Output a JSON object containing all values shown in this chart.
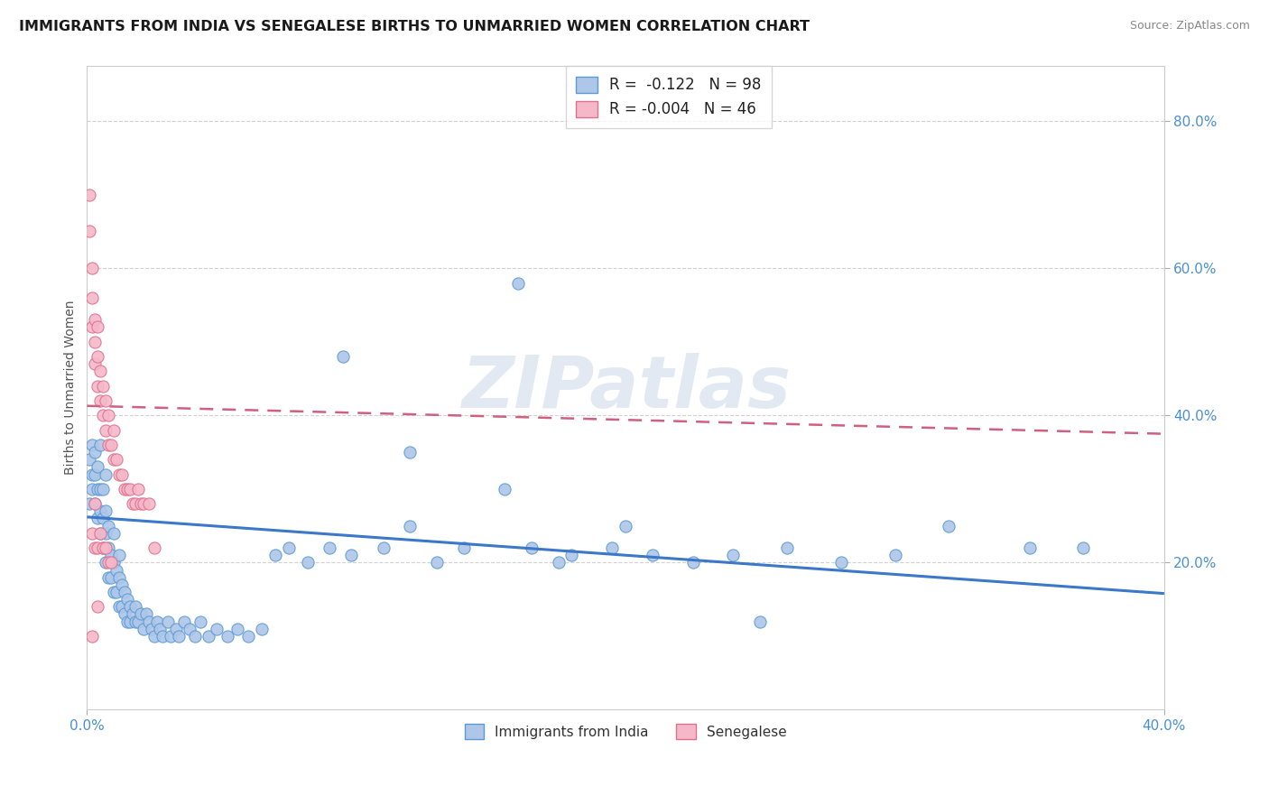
{
  "title": "IMMIGRANTS FROM INDIA VS SENEGALESE BIRTHS TO UNMARRIED WOMEN CORRELATION CHART",
  "source": "Source: ZipAtlas.com",
  "ylabel": "Births to Unmarried Women",
  "xlim": [
    0.0,
    0.4
  ],
  "ylim": [
    0.0,
    0.875
  ],
  "xticks": [
    0.0,
    0.4
  ],
  "xticklabels": [
    "0.0%",
    "40.0%"
  ],
  "yticks": [
    0.2,
    0.4,
    0.6,
    0.8
  ],
  "yticklabels": [
    "20.0%",
    "40.0%",
    "60.0%",
    "80.0%"
  ],
  "r_india": -0.122,
  "n_india": 98,
  "r_senegal": -0.004,
  "n_senegal": 46,
  "blue_scatter_color": "#aec6e8",
  "blue_edge_color": "#5b9bd5",
  "pink_scatter_color": "#f4b8c8",
  "pink_edge_color": "#e07090",
  "blue_line_color": "#3b78c9",
  "pink_line_color": "#d06080",
  "legend_label_india": "Immigrants from India",
  "legend_label_senegal": "Senegalese",
  "watermark": "ZIPatlas",
  "india_trend_y0": 0.262,
  "india_trend_y1": 0.158,
  "senegal_trend_y0": 0.413,
  "senegal_trend_y1": 0.375,
  "india_x": [
    0.001,
    0.001,
    0.002,
    0.002,
    0.002,
    0.003,
    0.003,
    0.003,
    0.004,
    0.004,
    0.004,
    0.005,
    0.005,
    0.005,
    0.005,
    0.006,
    0.006,
    0.006,
    0.007,
    0.007,
    0.007,
    0.007,
    0.008,
    0.008,
    0.008,
    0.009,
    0.009,
    0.01,
    0.01,
    0.01,
    0.011,
    0.011,
    0.012,
    0.012,
    0.012,
    0.013,
    0.013,
    0.014,
    0.014,
    0.015,
    0.015,
    0.016,
    0.016,
    0.017,
    0.018,
    0.018,
    0.019,
    0.02,
    0.021,
    0.022,
    0.023,
    0.024,
    0.025,
    0.026,
    0.027,
    0.028,
    0.03,
    0.031,
    0.033,
    0.034,
    0.036,
    0.038,
    0.04,
    0.042,
    0.045,
    0.048,
    0.052,
    0.056,
    0.06,
    0.065,
    0.07,
    0.075,
    0.082,
    0.09,
    0.098,
    0.11,
    0.12,
    0.13,
    0.14,
    0.155,
    0.165,
    0.18,
    0.195,
    0.21,
    0.225,
    0.24,
    0.26,
    0.28,
    0.3,
    0.16,
    0.175,
    0.095,
    0.32,
    0.35,
    0.37,
    0.2,
    0.25,
    0.12
  ],
  "india_y": [
    0.34,
    0.28,
    0.32,
    0.36,
    0.3,
    0.28,
    0.32,
    0.35,
    0.26,
    0.3,
    0.33,
    0.24,
    0.27,
    0.3,
    0.36,
    0.22,
    0.26,
    0.3,
    0.2,
    0.24,
    0.27,
    0.32,
    0.18,
    0.22,
    0.25,
    0.18,
    0.21,
    0.16,
    0.2,
    0.24,
    0.16,
    0.19,
    0.14,
    0.18,
    0.21,
    0.14,
    0.17,
    0.13,
    0.16,
    0.12,
    0.15,
    0.12,
    0.14,
    0.13,
    0.12,
    0.14,
    0.12,
    0.13,
    0.11,
    0.13,
    0.12,
    0.11,
    0.1,
    0.12,
    0.11,
    0.1,
    0.12,
    0.1,
    0.11,
    0.1,
    0.12,
    0.11,
    0.1,
    0.12,
    0.1,
    0.11,
    0.1,
    0.11,
    0.1,
    0.11,
    0.21,
    0.22,
    0.2,
    0.22,
    0.21,
    0.22,
    0.25,
    0.2,
    0.22,
    0.3,
    0.22,
    0.21,
    0.22,
    0.21,
    0.2,
    0.21,
    0.22,
    0.2,
    0.21,
    0.58,
    0.2,
    0.48,
    0.25,
    0.22,
    0.22,
    0.25,
    0.12,
    0.35
  ],
  "senegal_x": [
    0.001,
    0.001,
    0.002,
    0.002,
    0.002,
    0.003,
    0.003,
    0.003,
    0.004,
    0.004,
    0.004,
    0.005,
    0.005,
    0.006,
    0.006,
    0.007,
    0.007,
    0.008,
    0.008,
    0.009,
    0.01,
    0.01,
    0.011,
    0.012,
    0.013,
    0.014,
    0.015,
    0.016,
    0.017,
    0.018,
    0.019,
    0.02,
    0.021,
    0.023,
    0.025,
    0.002,
    0.003,
    0.004,
    0.005,
    0.006,
    0.007,
    0.008,
    0.009,
    0.002,
    0.003,
    0.004
  ],
  "senegal_y": [
    0.7,
    0.65,
    0.6,
    0.56,
    0.52,
    0.5,
    0.47,
    0.53,
    0.44,
    0.48,
    0.52,
    0.42,
    0.46,
    0.4,
    0.44,
    0.38,
    0.42,
    0.36,
    0.4,
    0.36,
    0.34,
    0.38,
    0.34,
    0.32,
    0.32,
    0.3,
    0.3,
    0.3,
    0.28,
    0.28,
    0.3,
    0.28,
    0.28,
    0.28,
    0.22,
    0.24,
    0.22,
    0.22,
    0.24,
    0.22,
    0.22,
    0.2,
    0.2,
    0.1,
    0.28,
    0.14
  ]
}
